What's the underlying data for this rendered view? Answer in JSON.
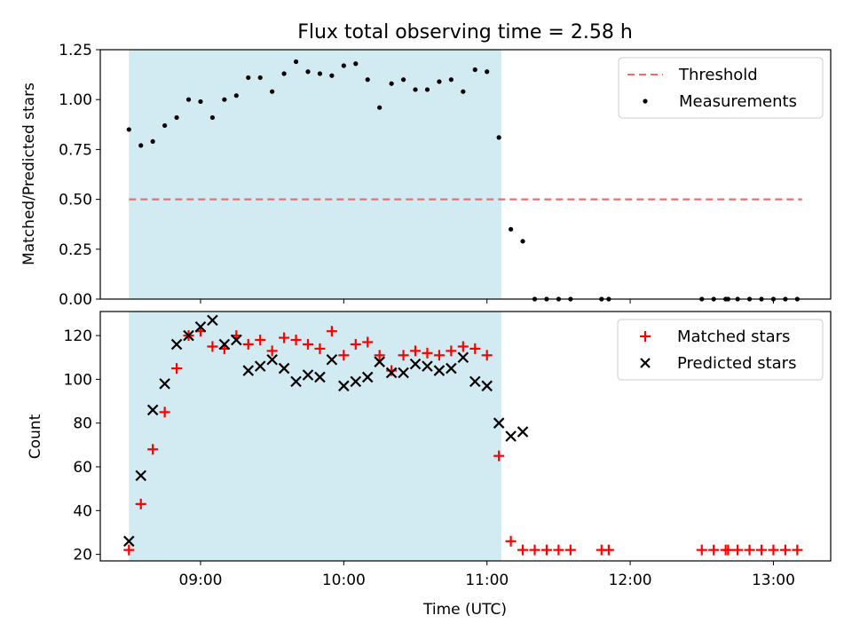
{
  "chart_data": [
    {
      "type": "scatter",
      "title": "Flux total observing time = 2.58 h",
      "xlabel": "",
      "ylabel": "Matched/Predicted stars",
      "ylim": [
        0,
        1.25
      ],
      "yticks": [
        "0.00",
        "0.25",
        "0.50",
        "0.75",
        "1.00",
        "1.25"
      ],
      "ytick_values": [
        0,
        0.25,
        0.5,
        0.75,
        1.0,
        1.25
      ],
      "xlim_hours": [
        8.3,
        13.4
      ],
      "shaded_interval_hours": [
        8.5,
        11.1
      ],
      "shade_color": "#add8e6",
      "threshold": {
        "name": "Threshold",
        "y": 0.5,
        "x_range_hours": [
          8.5,
          13.2
        ],
        "color": "#ff6666"
      },
      "legend": {
        "position": "top-right",
        "entries": [
          "Threshold",
          "Measurements"
        ]
      },
      "series": [
        {
          "name": "Measurements",
          "marker": "dot",
          "color": "#000000",
          "x": [
            "08:30",
            "08:35",
            "08:40",
            "08:45",
            "08:50",
            "08:55",
            "09:00",
            "09:05",
            "09:10",
            "09:15",
            "09:20",
            "09:25",
            "09:30",
            "09:35",
            "09:40",
            "09:45",
            "09:50",
            "09:55",
            "10:00",
            "10:05",
            "10:10",
            "10:15",
            "10:20",
            "10:25",
            "10:30",
            "10:35",
            "10:40",
            "10:45",
            "10:50",
            "10:55",
            "11:00",
            "11:05",
            "11:10",
            "11:15",
            "11:20",
            "11:25",
            "11:30",
            "11:35",
            "11:48",
            "11:51",
            "12:30",
            "12:35",
            "12:40",
            "12:41",
            "12:45",
            "12:50",
            "12:55",
            "13:00",
            "13:05",
            "13:10"
          ],
          "y": [
            0.85,
            0.77,
            0.79,
            0.87,
            0.91,
            1.0,
            0.99,
            0.91,
            1.0,
            1.02,
            1.11,
            1.11,
            1.04,
            1.13,
            1.19,
            1.14,
            1.13,
            1.12,
            1.17,
            1.18,
            1.1,
            0.96,
            1.08,
            1.1,
            1.05,
            1.05,
            1.09,
            1.1,
            1.04,
            1.15,
            1.14,
            0.81,
            0.35,
            0.29,
            0,
            0,
            0,
            0,
            0,
            0,
            0,
            0,
            0,
            0,
            0,
            0,
            0,
            0,
            0,
            0
          ]
        }
      ]
    },
    {
      "type": "scatter",
      "xlabel": "Time (UTC)",
      "ylabel": "Count",
      "ylim": [
        17,
        131
      ],
      "yticks": [
        "20",
        "40",
        "60",
        "80",
        "100",
        "120"
      ],
      "ytick_values": [
        20,
        40,
        60,
        80,
        100,
        120
      ],
      "xlim_hours": [
        8.3,
        13.4
      ],
      "xticks": [
        "09:00",
        "10:00",
        "11:00",
        "12:00",
        "13:00"
      ],
      "xtick_values_hours": [
        9,
        10,
        11,
        12,
        13
      ],
      "shaded_interval_hours": [
        8.5,
        11.1
      ],
      "shade_color": "#add8e6",
      "legend": {
        "position": "top-right",
        "entries": [
          "Matched stars",
          "Predicted stars"
        ]
      },
      "series": [
        {
          "name": "Matched stars",
          "marker": "plus",
          "color": "#ff0000",
          "x": [
            "08:30",
            "08:35",
            "08:40",
            "08:45",
            "08:50",
            "08:55",
            "09:00",
            "09:05",
            "09:10",
            "09:15",
            "09:20",
            "09:25",
            "09:30",
            "09:35",
            "09:40",
            "09:45",
            "09:50",
            "09:55",
            "10:00",
            "10:05",
            "10:10",
            "10:15",
            "10:20",
            "10:25",
            "10:30",
            "10:35",
            "10:40",
            "10:45",
            "10:50",
            "10:55",
            "11:00",
            "11:05",
            "11:10",
            "11:15",
            "11:20",
            "11:25",
            "11:30",
            "11:35",
            "11:48",
            "11:51",
            "12:30",
            "12:35",
            "12:40",
            "12:41",
            "12:45",
            "12:50",
            "12:55",
            "13:00",
            "13:05",
            "13:10"
          ],
          "y": [
            22,
            43,
            68,
            85,
            105,
            120,
            122,
            115,
            114,
            120,
            116,
            118,
            113,
            119,
            118,
            116,
            114,
            122,
            111,
            116,
            117,
            111,
            104,
            111,
            113,
            112,
            111,
            113,
            115,
            114,
            111,
            65,
            26,
            22,
            22,
            22,
            22,
            22,
            22,
            22,
            22,
            22,
            22,
            22,
            22,
            22,
            22,
            22,
            22,
            22
          ]
        },
        {
          "name": "Predicted stars",
          "marker": "x",
          "color": "#000000",
          "x": [
            "08:30",
            "08:35",
            "08:40",
            "08:45",
            "08:50",
            "08:55",
            "09:00",
            "09:05",
            "09:10",
            "09:15",
            "09:20",
            "09:25",
            "09:30",
            "09:35",
            "09:40",
            "09:45",
            "09:50",
            "09:55",
            "10:00",
            "10:05",
            "10:10",
            "10:15",
            "10:20",
            "10:25",
            "10:30",
            "10:35",
            "10:40",
            "10:45",
            "10:50",
            "10:55",
            "11:00",
            "11:05",
            "11:10",
            "11:15"
          ],
          "y": [
            26,
            56,
            86,
            98,
            116,
            120,
            124,
            127,
            116,
            118,
            104,
            106,
            109,
            105,
            99,
            102,
            101,
            109,
            97,
            99,
            101,
            108,
            103,
            103,
            107,
            106,
            104,
            105,
            110,
            99,
            97,
            80,
            74,
            76
          ]
        }
      ]
    }
  ]
}
